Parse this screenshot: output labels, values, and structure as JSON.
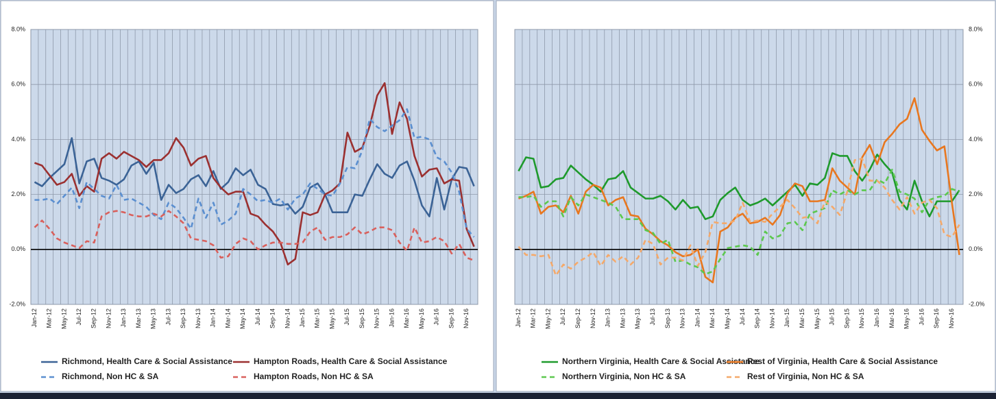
{
  "chart_data": [
    {
      "type": "line",
      "y_axis_side": "left",
      "legend": "bottom",
      "grid": true,
      "ylim": [
        -2,
        8
      ],
      "yticks": [
        {
          "value": -2,
          "label": "-2.0%"
        },
        {
          "value": 0,
          "label": "0.0%"
        },
        {
          "value": 2,
          "label": "2.0%"
        },
        {
          "value": 4,
          "label": "4.0%"
        },
        {
          "value": 6,
          "label": "6.0%"
        },
        {
          "value": 8,
          "label": "8.0%"
        }
      ],
      "categories": [
        "Jan-12",
        null,
        "Mar-12",
        null,
        "May-12",
        null,
        "Jul-12",
        null,
        "Sep-12",
        null,
        "Nov-12",
        null,
        "Jan-13",
        null,
        "Mar-13",
        null,
        "May-13",
        null,
        "Jul-13",
        null,
        "Sep-13",
        null,
        "Nov-13",
        null,
        "Jan-14",
        null,
        "Mar-14",
        null,
        "May-14",
        null,
        "Jul-14",
        null,
        "Sep-14",
        null,
        "Nov-14",
        null,
        "Jan-15",
        null,
        "Mar-15",
        null,
        "May-15",
        null,
        "Jul-15",
        null,
        "Sep-15",
        null,
        "Nov-15",
        null,
        "Jan-16",
        null,
        "Mar-16",
        null,
        "May-16",
        null,
        "Jul-16",
        null,
        "Sep-16",
        null,
        "Nov-16",
        null
      ],
      "series": [
        {
          "name": "Richmond, Health Care & Social Assistance",
          "color": "#3b6396",
          "line_style": "solid",
          "values": [
            2.45,
            2.3,
            2.6,
            2.85,
            3.1,
            4.05,
            2.4,
            3.2,
            3.3,
            2.6,
            2.5,
            2.35,
            2.55,
            3.05,
            3.2,
            2.75,
            3.15,
            1.8,
            2.35,
            2.05,
            2.2,
            2.55,
            2.7,
            2.3,
            2.85,
            2.2,
            2.45,
            2.95,
            2.7,
            2.9,
            2.35,
            2.2,
            1.65,
            1.6,
            1.65,
            1.3,
            1.55,
            2.25,
            2.4,
            2.0,
            1.35,
            1.35,
            1.35,
            2.0,
            1.95,
            2.55,
            3.1,
            2.75,
            2.6,
            3.05,
            3.2,
            2.5,
            1.6,
            1.2,
            2.6,
            1.45,
            2.55,
            3.0,
            2.95,
            2.3
          ]
        },
        {
          "name": "Hampton Roads, Health Care & Social Assistance",
          "color": "#9b3030",
          "line_style": "solid",
          "values": [
            3.15,
            3.05,
            2.7,
            2.35,
            2.45,
            2.75,
            1.95,
            2.3,
            2.1,
            3.3,
            3.5,
            3.3,
            3.55,
            3.4,
            3.25,
            3.0,
            3.25,
            3.25,
            3.5,
            4.05,
            3.7,
            3.05,
            3.3,
            3.4,
            2.6,
            2.25,
            2.0,
            2.1,
            2.1,
            1.3,
            1.2,
            0.9,
            0.65,
            0.25,
            -0.55,
            -0.35,
            1.35,
            1.25,
            1.35,
            2.0,
            2.15,
            2.4,
            4.25,
            3.55,
            3.7,
            4.5,
            5.6,
            6.05,
            4.2,
            5.35,
            4.75,
            3.4,
            2.65,
            2.9,
            2.95,
            2.4,
            2.55,
            2.5,
            0.75,
            0.1
          ]
        },
        {
          "name": "Richmond, Non HC & SA",
          "color": "#5b8fd0",
          "line_style": "dashed",
          "values": [
            1.8,
            1.8,
            1.85,
            1.65,
            1.95,
            2.25,
            1.5,
            2.45,
            2.2,
            1.95,
            1.85,
            2.35,
            1.8,
            1.85,
            1.7,
            1.55,
            1.25,
            1.1,
            1.7,
            1.5,
            1.15,
            0.75,
            1.85,
            1.15,
            1.7,
            0.9,
            1.05,
            1.3,
            2.2,
            2.0,
            1.75,
            1.8,
            1.7,
            1.85,
            1.45,
            1.85,
            2.0,
            2.4,
            2.2,
            2.0,
            1.95,
            2.4,
            3.0,
            2.95,
            3.6,
            4.75,
            4.45,
            4.3,
            4.5,
            4.7,
            5.1,
            4.05,
            4.1,
            4.0,
            3.35,
            3.2,
            2.8,
            2.1,
            0.75,
            0.45
          ]
        },
        {
          "name": "Hampton Roads, Non HC & SA",
          "color": "#d9605c",
          "line_style": "dashed",
          "values": [
            0.8,
            1.05,
            0.75,
            0.4,
            0.25,
            0.15,
            0.05,
            0.3,
            0.25,
            1.2,
            1.35,
            1.4,
            1.35,
            1.25,
            1.2,
            1.2,
            1.3,
            1.2,
            1.4,
            1.2,
            0.95,
            0.4,
            0.35,
            0.3,
            0.15,
            -0.3,
            -0.25,
            0.2,
            0.4,
            0.3,
            0.0,
            0.15,
            0.25,
            0.25,
            0.2,
            0.2,
            0.25,
            0.65,
            0.8,
            0.35,
            0.45,
            0.45,
            0.55,
            0.8,
            0.55,
            0.65,
            0.8,
            0.8,
            0.7,
            0.25,
            -0.05,
            0.8,
            0.25,
            0.3,
            0.45,
            0.3,
            -0.15,
            0.2,
            -0.3,
            -0.4
          ]
        }
      ]
    },
    {
      "type": "line",
      "y_axis_side": "right",
      "legend": "bottom",
      "grid": true,
      "ylim": [
        -2,
        8
      ],
      "yticks": [
        {
          "value": -2,
          "label": "-2.0%"
        },
        {
          "value": 0,
          "label": "0.0%"
        },
        {
          "value": 2,
          "label": "2.0%"
        },
        {
          "value": 4,
          "label": "4.0%"
        },
        {
          "value": 6,
          "label": "6.0%"
        },
        {
          "value": 8,
          "label": "8.0%"
        }
      ],
      "categories": [
        "Jan-12",
        null,
        "Mar-12",
        null,
        "May-12",
        null,
        "Jul-12",
        null,
        "Sep-12",
        null,
        "Nov-12",
        null,
        "Jan-13",
        null,
        "Mar-13",
        null,
        "May-13",
        null,
        "Jul-13",
        null,
        "Sep-13",
        null,
        "Nov-13",
        null,
        "Jan-14",
        null,
        "Mar-14",
        null,
        "May-14",
        null,
        "Jul-14",
        null,
        "Sep-14",
        null,
        "Nov-14",
        null,
        "Jan-15",
        null,
        "Mar-15",
        null,
        "May-15",
        null,
        "Jul-15",
        null,
        "Sep-15",
        null,
        "Nov-15",
        null,
        "Jan-16",
        null,
        "Mar-16",
        null,
        "May-16",
        null,
        "Jul-16",
        null,
        "Sep-16",
        null,
        "Nov-16",
        null
      ],
      "series": [
        {
          "name": "Northern Virginia, Health Care & Social Assistance",
          "color": "#1e9a2c",
          "line_style": "solid",
          "values": [
            2.85,
            3.35,
            3.3,
            2.25,
            2.3,
            2.55,
            2.6,
            3.05,
            2.8,
            2.55,
            2.35,
            2.1,
            2.55,
            2.6,
            2.85,
            2.25,
            2.05,
            1.85,
            1.85,
            1.95,
            1.75,
            1.45,
            1.8,
            1.5,
            1.55,
            1.1,
            1.2,
            1.8,
            2.05,
            2.25,
            1.8,
            1.6,
            1.7,
            1.85,
            1.6,
            1.85,
            2.1,
            2.35,
            1.95,
            2.4,
            2.35,
            2.6,
            3.5,
            3.4,
            3.4,
            2.85,
            2.5,
            2.9,
            3.45,
            3.1,
            2.8,
            1.8,
            1.45,
            2.5,
            1.75,
            1.2,
            1.75,
            1.75,
            1.75,
            2.15
          ]
        },
        {
          "name": "Rest of Virginia, Health Care & Social Assistance",
          "color": "#e8771f",
          "line_style": "solid",
          "values": [
            1.85,
            1.95,
            2.1,
            1.3,
            1.55,
            1.6,
            1.35,
            1.95,
            1.3,
            2.1,
            2.35,
            2.25,
            1.6,
            1.8,
            1.9,
            1.25,
            1.2,
            0.75,
            0.55,
            0.3,
            0.15,
            -0.1,
            -0.25,
            -0.2,
            0.0,
            -1.0,
            -1.2,
            0.65,
            0.8,
            1.15,
            1.3,
            0.95,
            1.0,
            1.15,
            0.9,
            1.25,
            2.05,
            2.4,
            2.3,
            1.75,
            1.75,
            1.8,
            2.95,
            2.5,
            2.25,
            2.0,
            3.35,
            3.8,
            3.1,
            3.9,
            4.2,
            4.55,
            4.75,
            5.5,
            4.35,
            3.95,
            3.6,
            3.75,
            1.7,
            -0.2
          ]
        },
        {
          "name": "Northern Virginia, Non HC & SA",
          "color": "#5cc84e",
          "line_style": "dashed",
          "values": [
            1.9,
            1.9,
            1.95,
            1.55,
            1.75,
            1.75,
            1.2,
            1.9,
            1.6,
            2.0,
            1.9,
            1.8,
            1.7,
            1.55,
            1.1,
            1.1,
            1.1,
            0.7,
            0.6,
            0.2,
            0.35,
            -0.45,
            -0.4,
            -0.55,
            -0.65,
            -0.9,
            -0.8,
            -0.35,
            0.05,
            0.1,
            0.15,
            0.1,
            -0.2,
            0.65,
            0.4,
            0.5,
            0.95,
            1.0,
            0.7,
            1.3,
            1.4,
            1.5,
            2.15,
            2.0,
            2.15,
            2.0,
            2.15,
            2.15,
            2.55,
            2.4,
            2.9,
            2.1,
            2.0,
            1.85,
            1.35,
            1.8,
            1.9,
            1.95,
            2.2,
            2.1
          ]
        },
        {
          "name": "Rest of Virginia, Non HC & SA",
          "color": "#f5a96a",
          "line_style": "dashed",
          "values": [
            0.1,
            -0.2,
            -0.2,
            -0.25,
            -0.2,
            -0.95,
            -0.55,
            -0.7,
            -0.45,
            -0.3,
            -0.1,
            -0.6,
            -0.2,
            -0.45,
            -0.25,
            -0.55,
            -0.3,
            0.35,
            0.2,
            -0.55,
            -0.3,
            -0.3,
            -0.4,
            0.15,
            -0.6,
            -0.1,
            1.0,
            0.95,
            0.95,
            1.05,
            1.7,
            1.0,
            1.05,
            1.0,
            1.3,
            1.55,
            1.8,
            1.5,
            1.15,
            1.2,
            0.95,
            1.75,
            1.55,
            1.25,
            2.1,
            3.25,
            3.3,
            2.5,
            2.5,
            2.25,
            1.8,
            1.45,
            1.9,
            1.3,
            1.7,
            1.8,
            1.5,
            0.55,
            0.45,
            0.9
          ]
        }
      ]
    }
  ]
}
